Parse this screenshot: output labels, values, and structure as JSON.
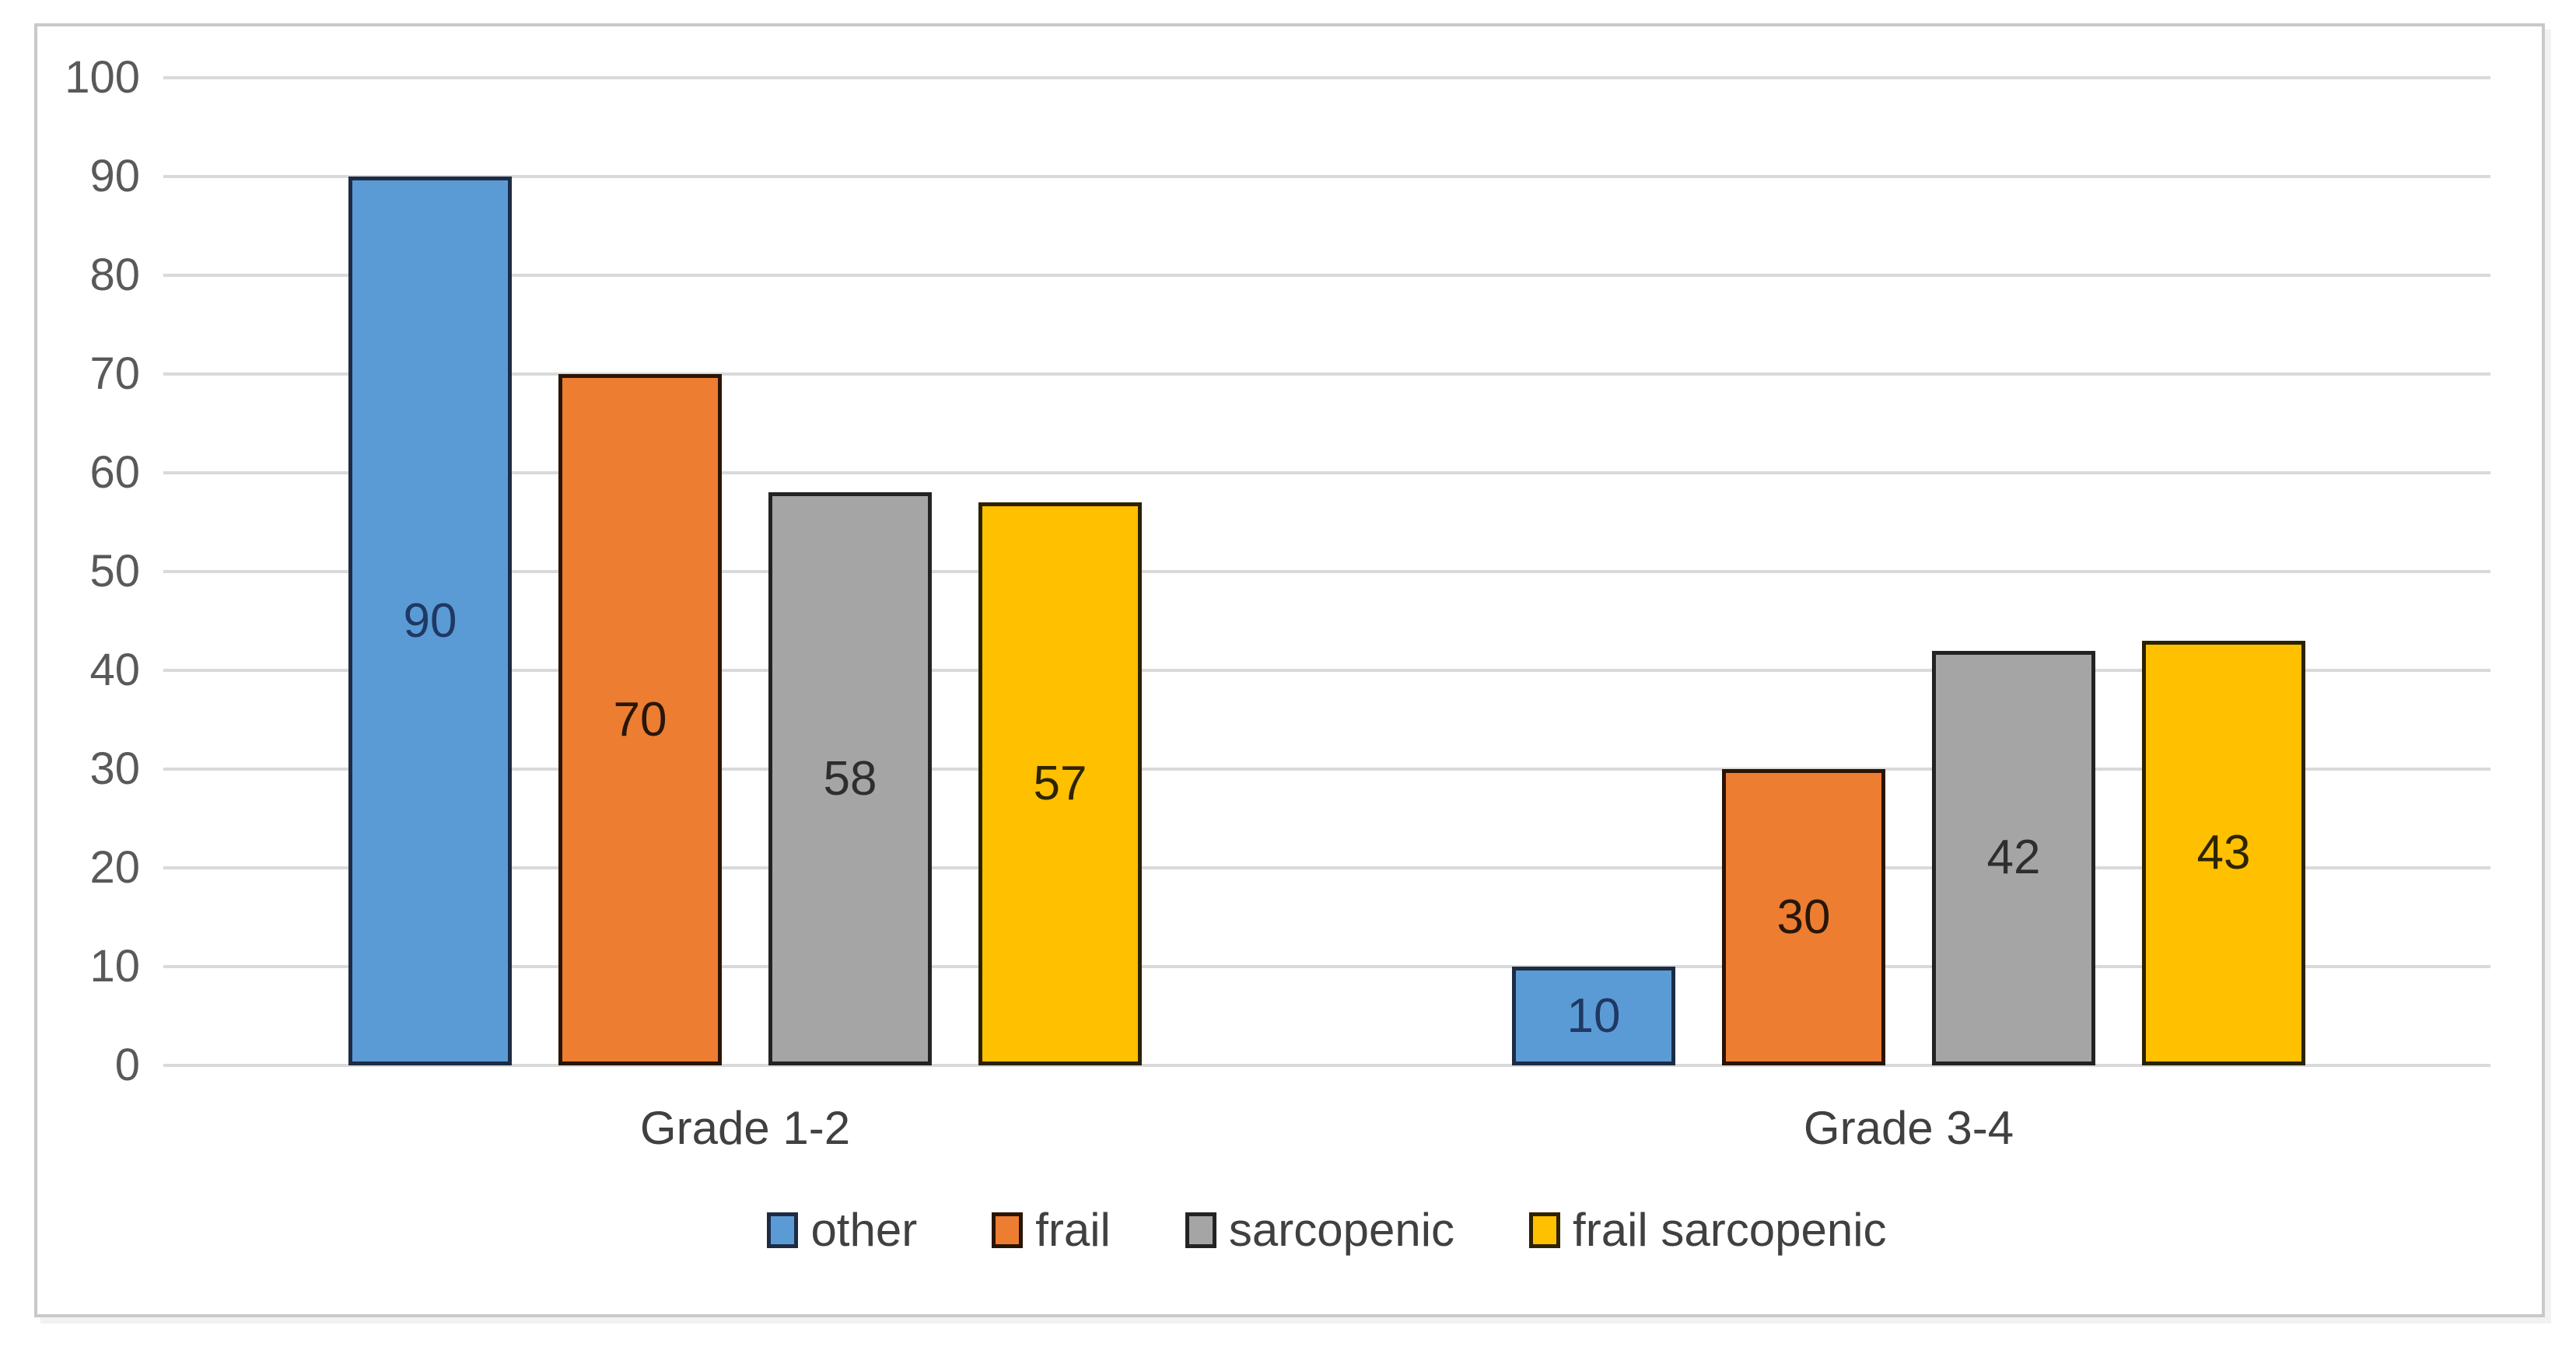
{
  "chart_data": {
    "type": "bar",
    "title": "",
    "categories": [
      "Grade 1-2",
      "Grade 3-4"
    ],
    "series": [
      {
        "name": "other",
        "values": [
          90,
          10
        ],
        "fill": "#5B9BD5",
        "border": "#1d2c44",
        "label_color": "#1F3864"
      },
      {
        "name": "frail",
        "values": [
          70,
          30
        ],
        "fill": "#ED7D31",
        "border": "#291504",
        "label_color": "#27160a"
      },
      {
        "name": "sarcopenic",
        "values": [
          58,
          42
        ],
        "fill": "#A5A5A5",
        "border": "#232323",
        "label_color": "#2e2e2e"
      },
      {
        "name": "frail sarcopenic",
        "values": [
          57,
          43
        ],
        "fill": "#FFC000",
        "border": "#2b2200",
        "label_color": "#2d2400"
      }
    ],
    "ylim": [
      0,
      100
    ],
    "yticks": [
      0,
      10,
      20,
      30,
      40,
      50,
      60,
      70,
      80,
      90,
      100
    ],
    "grid": true,
    "legend_position": "bottom",
    "data_label_position": "inside-center",
    "style": {
      "background": "#ffffff",
      "frame_border_color": "#c9c9c9",
      "gridline_color": "#d9d9d9",
      "tick_label_color": "#595959",
      "category_label_color": "#404040",
      "legend_text_color": "#404040"
    }
  }
}
